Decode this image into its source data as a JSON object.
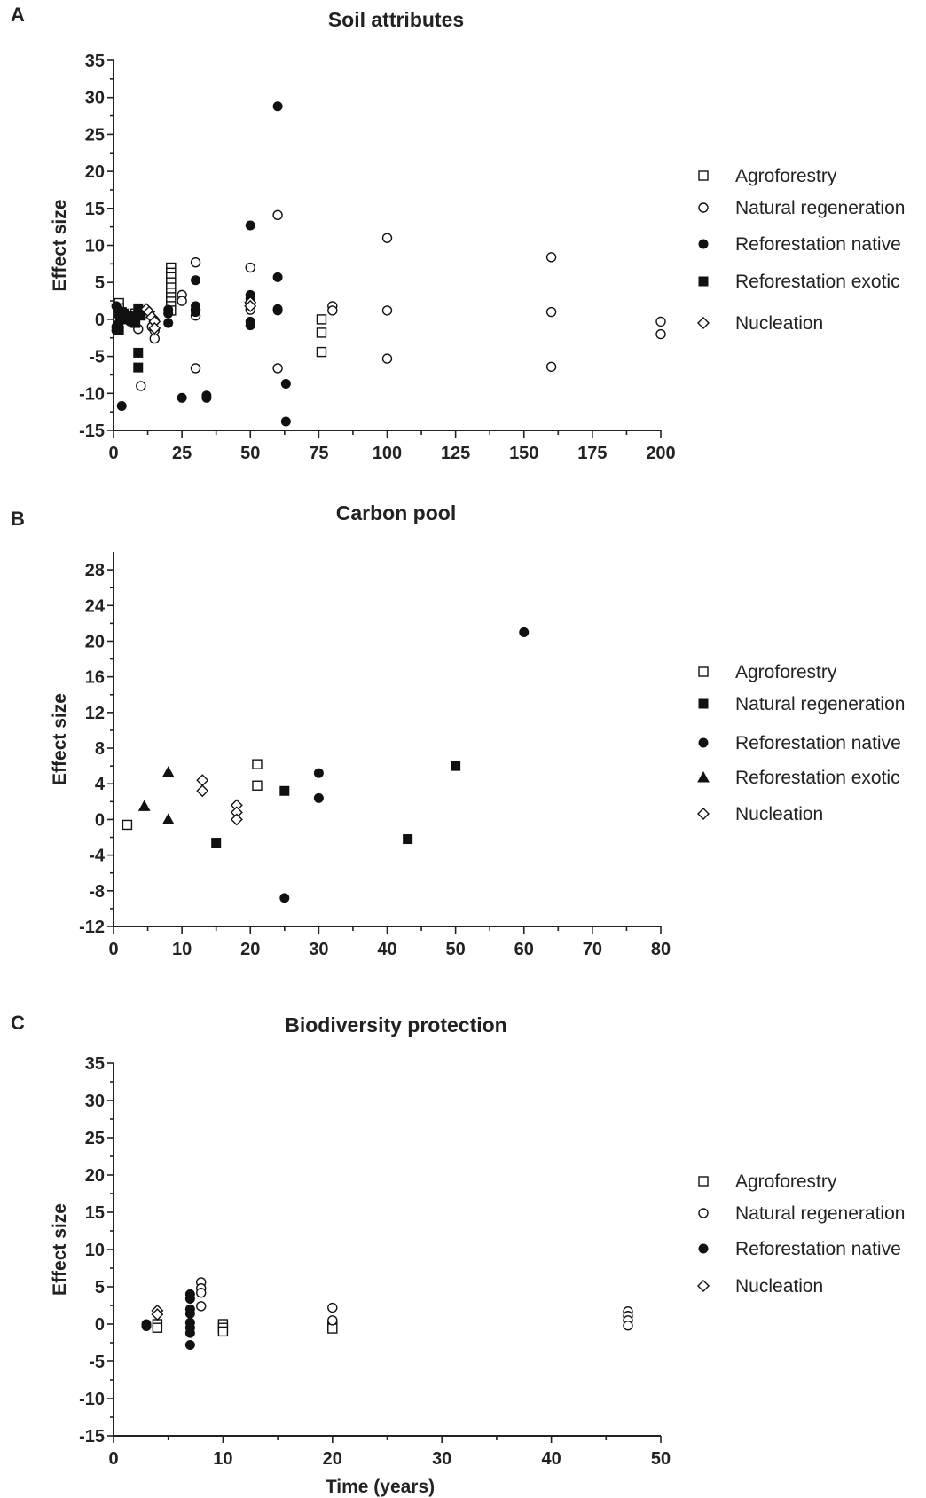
{
  "chart_data": [
    {
      "panel": "A",
      "type": "scatter",
      "title": "Soil attributes",
      "xlabel": "",
      "ylabel": "Effect size",
      "xlim": [
        0,
        200
      ],
      "ylim": [
        -15,
        35
      ],
      "xticks": [
        0,
        25,
        50,
        75,
        100,
        125,
        150,
        175,
        200
      ],
      "yticks": [
        -15,
        -10,
        -5,
        0,
        5,
        10,
        15,
        20,
        25,
        30,
        35
      ],
      "legend_position": "right",
      "series": [
        {
          "name": "Agroforestry",
          "marker": "open-square",
          "points": [
            [
              2,
              2.2
            ],
            [
              2,
              1.5
            ],
            [
              3,
              0.8
            ],
            [
              3,
              0.2
            ],
            [
              5,
              0.5
            ],
            [
              8,
              0.8
            ],
            [
              21,
              7
            ],
            [
              21,
              6.3
            ],
            [
              21,
              5.7
            ],
            [
              21,
              5
            ],
            [
              21,
              4.3
            ],
            [
              21,
              3.6
            ],
            [
              21,
              3
            ],
            [
              21,
              2.4
            ],
            [
              21,
              1.8
            ],
            [
              21,
              1.2
            ],
            [
              76,
              0
            ],
            [
              76,
              -1.8
            ],
            [
              76,
              -4.4
            ]
          ]
        },
        {
          "name": "Natural regeneration",
          "marker": "open-circle",
          "points": [
            [
              9,
              -1.3
            ],
            [
              10,
              -9
            ],
            [
              14,
              -1
            ],
            [
              15,
              -2.6
            ],
            [
              15,
              -1.5
            ],
            [
              15,
              -0.2
            ],
            [
              25,
              3.3
            ],
            [
              25,
              2.5
            ],
            [
              30,
              7.7
            ],
            [
              30,
              1.3
            ],
            [
              30,
              0.5
            ],
            [
              30,
              -6.6
            ],
            [
              50,
              7
            ],
            [
              50,
              1.3
            ],
            [
              60,
              14.1
            ],
            [
              60,
              -6.6
            ],
            [
              80,
              1.8
            ],
            [
              80,
              1.2
            ],
            [
              100,
              11
            ],
            [
              100,
              1.2
            ],
            [
              100,
              -5.3
            ],
            [
              160,
              8.4
            ],
            [
              160,
              1
            ],
            [
              160,
              -6.4
            ],
            [
              200,
              -0.3
            ],
            [
              200,
              -2
            ]
          ]
        },
        {
          "name": "Reforestation native",
          "marker": "filled-circle",
          "points": [
            [
              1,
              1.8
            ],
            [
              1,
              -1
            ],
            [
              1,
              -1.5
            ],
            [
              2,
              1.2
            ],
            [
              2,
              0.5
            ],
            [
              2,
              -0.5
            ],
            [
              3,
              -11.7
            ],
            [
              4,
              0.5
            ],
            [
              5,
              0
            ],
            [
              6,
              -0.3
            ],
            [
              7,
              0.5
            ],
            [
              20,
              1.3
            ],
            [
              20,
              0.8
            ],
            [
              20,
              -0.5
            ],
            [
              25,
              -10.6
            ],
            [
              30,
              5.3
            ],
            [
              30,
              1.8
            ],
            [
              30,
              1
            ],
            [
              34,
              -10.3
            ],
            [
              34,
              -10.6
            ],
            [
              50,
              12.7
            ],
            [
              50,
              3.3
            ],
            [
              50,
              2.8
            ],
            [
              50,
              -0.3
            ],
            [
              50,
              -0.8
            ],
            [
              60,
              28.8
            ],
            [
              60,
              5.7
            ],
            [
              60,
              1.4
            ],
            [
              60,
              1.2
            ],
            [
              63,
              -8.7
            ],
            [
              63,
              -13.8
            ]
          ]
        },
        {
          "name": "Reforestation exotic",
          "marker": "filled-square",
          "points": [
            [
              2,
              -1.5
            ],
            [
              3,
              1
            ],
            [
              4,
              0.8
            ],
            [
              4,
              0
            ],
            [
              8,
              -0.5
            ],
            [
              9,
              1.5
            ],
            [
              9,
              -4.5
            ],
            [
              9,
              -6.5
            ],
            [
              10,
              0.5
            ],
            [
              10,
              1
            ]
          ]
        },
        {
          "name": "Nucleation",
          "marker": "open-diamond",
          "points": [
            [
              12,
              1.4
            ],
            [
              13,
              1
            ],
            [
              14,
              0.3
            ],
            [
              15,
              -0.3
            ],
            [
              15,
              -1.2
            ],
            [
              50,
              2.3
            ],
            [
              50,
              1.8
            ]
          ]
        }
      ]
    },
    {
      "panel": "B",
      "type": "scatter",
      "title": "Carbon pool",
      "xlabel": "",
      "ylabel": "Effect size",
      "xlim": [
        0,
        80
      ],
      "ylim": [
        -12,
        30
      ],
      "xticks": [
        0,
        10,
        20,
        30,
        40,
        50,
        60,
        70,
        80
      ],
      "yticks": [
        -12,
        -8,
        -4,
        0,
        4,
        8,
        12,
        16,
        20,
        24,
        28
      ],
      "legend_position": "right",
      "series": [
        {
          "name": "Agroforestry",
          "marker": "open-square",
          "points": [
            [
              2,
              -0.6
            ],
            [
              21,
              6.2
            ],
            [
              21,
              3.8
            ]
          ]
        },
        {
          "name": "Natural regeneration",
          "marker": "filled-square",
          "points": [
            [
              15,
              -2.6
            ],
            [
              25,
              3.2
            ],
            [
              43,
              -2.2
            ],
            [
              50,
              6
            ]
          ]
        },
        {
          "name": "Reforestation native",
          "marker": "filled-circle",
          "points": [
            [
              25,
              -8.8
            ],
            [
              30,
              5.2
            ],
            [
              30,
              2.4
            ],
            [
              60,
              21
            ]
          ]
        },
        {
          "name": "Reforestation exotic",
          "marker": "filled-triangle",
          "points": [
            [
              4.5,
              1.5
            ],
            [
              8,
              5.3
            ],
            [
              8,
              0
            ]
          ]
        },
        {
          "name": "Nucleation",
          "marker": "open-diamond",
          "points": [
            [
              13,
              4.4
            ],
            [
              13,
              3.2
            ],
            [
              18,
              1.6
            ],
            [
              18,
              0.8
            ],
            [
              18,
              0
            ]
          ]
        }
      ]
    },
    {
      "panel": "C",
      "type": "scatter",
      "title": "Biodiversity protection",
      "xlabel": "Time (years)",
      "ylabel": "Effect size",
      "xlim": [
        0,
        50
      ],
      "ylim": [
        -15,
        35
      ],
      "xticks": [
        0,
        10,
        20,
        30,
        40,
        50
      ],
      "yticks": [
        -15,
        -10,
        -5,
        0,
        5,
        10,
        15,
        20,
        25,
        30,
        35
      ],
      "legend_position": "right",
      "series": [
        {
          "name": "Agroforestry",
          "marker": "open-square",
          "points": [
            [
              4,
              0
            ],
            [
              4,
              -0.5
            ],
            [
              10,
              0
            ],
            [
              10,
              -0.5
            ],
            [
              10,
              -1
            ],
            [
              20,
              -0.2
            ],
            [
              20,
              -0.6
            ]
          ]
        },
        {
          "name": "Natural regeneration",
          "marker": "open-circle",
          "points": [
            [
              8,
              5.6
            ],
            [
              8,
              4.8
            ],
            [
              8,
              4.2
            ],
            [
              8,
              2.4
            ],
            [
              20,
              2.2
            ],
            [
              20,
              0.5
            ],
            [
              47,
              1.7
            ],
            [
              47,
              1.1
            ],
            [
              47,
              0.5
            ],
            [
              47,
              -0.2
            ]
          ]
        },
        {
          "name": "Reforestation native",
          "marker": "filled-circle",
          "points": [
            [
              3,
              0
            ],
            [
              3,
              -0.3
            ],
            [
              7,
              4
            ],
            [
              7,
              3.4
            ],
            [
              7,
              2
            ],
            [
              7,
              1.4
            ],
            [
              7,
              0.2
            ],
            [
              7,
              -0.5
            ],
            [
              7,
              -1.2
            ],
            [
              7,
              -2.8
            ]
          ]
        },
        {
          "name": "Nucleation",
          "marker": "open-diamond",
          "points": [
            [
              4,
              1.8
            ],
            [
              4,
              1.3
            ]
          ]
        }
      ]
    }
  ],
  "panels": [
    {
      "letter": "A"
    },
    {
      "letter": "B"
    },
    {
      "letter": "C"
    }
  ]
}
